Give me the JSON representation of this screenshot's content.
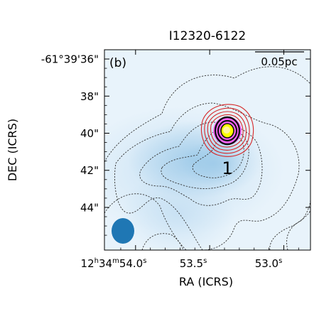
{
  "chart_data": {
    "type": "heatmap",
    "title": "I12320-6122",
    "panel_tag": "(b)",
    "xlabel": "RA (ICRS)",
    "ylabel": "DEC (ICRS)",
    "x_ticks": [
      {
        "h": "12",
        "m": "34",
        "s": "54.0",
        "value_s": 54.0,
        "full": true
      },
      {
        "s": "53.5",
        "value_s": 53.5,
        "full": false
      },
      {
        "s": "53.0",
        "value_s": 53.0,
        "full": false
      }
    ],
    "y_ticks": [
      {
        "label": "-61°39'36\"",
        "value_arcsec": 36
      },
      {
        "label": "38\"",
        "value_arcsec": 38
      },
      {
        "label": "40\"",
        "value_arcsec": 40
      },
      {
        "label": "42\"",
        "value_arcsec": 42
      },
      {
        "label": "44\"",
        "value_arcsec": 44
      }
    ],
    "xlim_s": [
      54.21,
      52.82
    ],
    "ylim_arcsec": [
      35.5,
      46.3
    ],
    "scale_bar": {
      "label": "0.05pc"
    },
    "sources": [
      {
        "id": "1",
        "ra_s": 53.26,
        "dec_arcsec": 40.0
      }
    ],
    "beam": {
      "ra_s": 54.05,
      "dec_arcsec": 45.2
    },
    "colors": {
      "background": "#e8f3fb",
      "emission": "#7fb7df",
      "core": "#ff66ff",
      "peak": "#ffff00",
      "contour_black": "#333333",
      "contour_red": "#d62728",
      "beam": "#1f77b4"
    }
  }
}
